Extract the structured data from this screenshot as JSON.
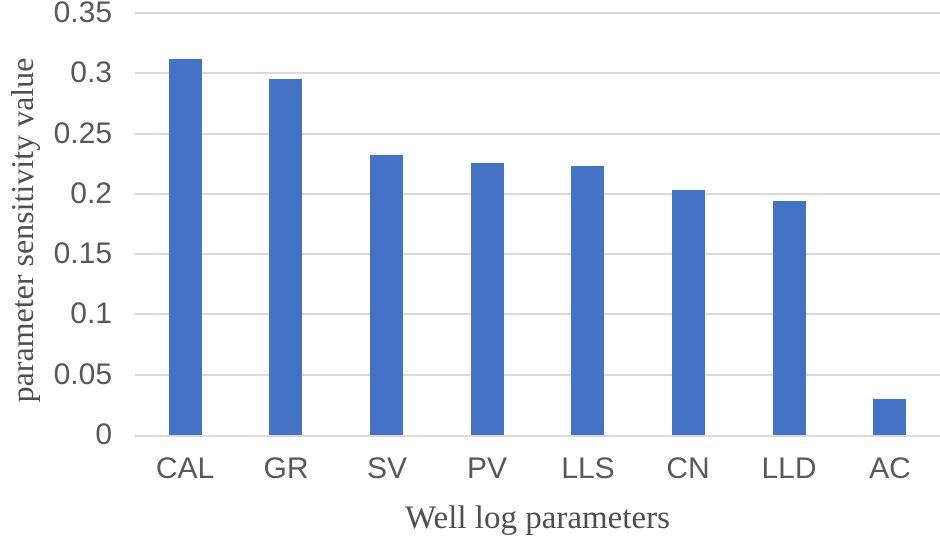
{
  "figure": {
    "background": "#ffffff"
  },
  "chart_data": {
    "type": "bar",
    "title": "",
    "xlabel": "Well log parameters",
    "ylabel": "parameter sensitivity value",
    "categories": [
      "CAL",
      "GR",
      "SV",
      "PV",
      "LLS",
      "CN",
      "LLD",
      "AC"
    ],
    "values": [
      0.312,
      0.295,
      0.232,
      0.226,
      0.223,
      0.203,
      0.194,
      0.03
    ],
    "ylim": [
      0,
      0.35
    ],
    "yticks": [
      0,
      0.05,
      0.1,
      0.15,
      0.2,
      0.25,
      0.3,
      0.35
    ],
    "ytick_labels": [
      "0",
      "0.05",
      "0.1",
      "0.15",
      "0.2",
      "0.25",
      "0.3",
      "0.35"
    ],
    "grid": "horizontal",
    "legend": "none",
    "bar_color": "#4472C4",
    "gridline_color": "#D9D9D9",
    "axis_line_color": "#D9D9D9",
    "tick_label_color": "#595959",
    "axis_title_color": "#4F4F4F"
  }
}
